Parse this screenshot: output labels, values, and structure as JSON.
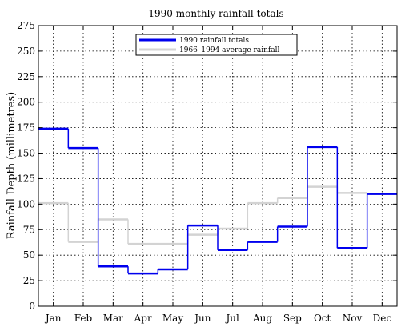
{
  "chart_data": {
    "type": "line",
    "step": "mid",
    "title": "1990 monthly rainfall totals",
    "xlabel": "",
    "ylabel": "Rainfall Depth (millimetres)",
    "categories": [
      "Jan",
      "Feb",
      "Mar",
      "Apr",
      "May",
      "Jun",
      "Jul",
      "Aug",
      "Sep",
      "Oct",
      "Nov",
      "Dec"
    ],
    "ylim": [
      0,
      275
    ],
    "yticks": [
      0,
      25,
      50,
      75,
      100,
      125,
      150,
      175,
      200,
      225,
      250,
      275
    ],
    "grid": true,
    "legend_position": "top-center",
    "series": [
      {
        "name": "1990 rainfall totals",
        "color": "#0000ee",
        "values": [
          174,
          155,
          39,
          32,
          36,
          79,
          55,
          63,
          78,
          156,
          57,
          110
        ]
      },
      {
        "name": "1966–1994 average rainfall",
        "color": "#d3d3d3",
        "values": [
          101,
          63,
          85,
          61,
          61,
          70,
          76,
          101,
          106,
          117,
          111,
          110
        ]
      }
    ]
  }
}
